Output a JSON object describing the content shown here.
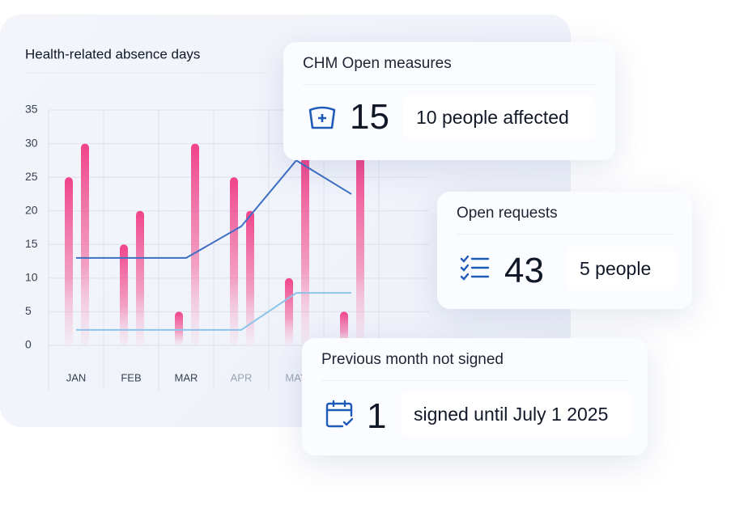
{
  "chart_data": {
    "type": "bar",
    "title": "Health-related absence days",
    "categories": [
      "JAN",
      "FEB",
      "MAR",
      "APR",
      "MAY",
      null
    ],
    "series": [
      {
        "type": "bar",
        "color": "#f0438a",
        "values": [
          25,
          15,
          5,
          25,
          10,
          5
        ]
      },
      {
        "type": "bar",
        "color": "#f0438a",
        "values": [
          30,
          20,
          30,
          20,
          28,
          28
        ]
      },
      {
        "type": "line",
        "color": "#3d6fc4",
        "values": [
          13,
          13,
          13,
          17.7,
          27.5,
          22.5
        ]
      },
      {
        "type": "line",
        "color": "#8ec3ea",
        "values": [
          2.3,
          2.3,
          2.3,
          2.3,
          7.8,
          7.8
        ]
      }
    ],
    "ylim": [
      0,
      35
    ],
    "yticks": [
      0,
      5,
      10,
      15,
      20,
      25,
      30,
      35
    ],
    "grid": true
  },
  "cards": [
    {
      "title": "CHM Open measures",
      "value": 15,
      "note": "10 people affected"
    },
    {
      "title": "Open requests",
      "value": 43,
      "note": "5 people"
    },
    {
      "title": "Previous month not signed",
      "value": 1,
      "note": "signed until July 1 2025"
    }
  ]
}
